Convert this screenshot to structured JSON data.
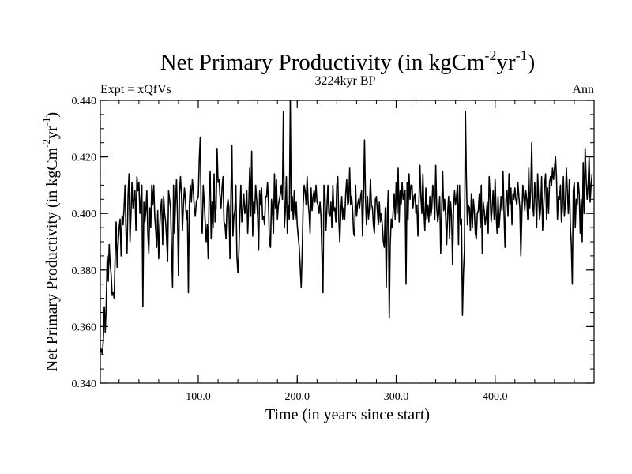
{
  "chart_data": {
    "type": "line",
    "title": "Net Primary Productivity (in kgCm",
    "title_sup1": "-2",
    "title_mid": "yr",
    "title_sup2": "-1",
    "title_end": ")",
    "left_label": "Expt = xQfVs",
    "center_label": "3224kyr BP",
    "right_label": "Ann",
    "xlabel": "Time (in years since start)",
    "ylabel": "Net Primary Productivity (in kgCm",
    "ylabel_sup1": "-2",
    "ylabel_mid": "yr",
    "ylabel_sup2": "-1",
    "ylabel_end": ")",
    "xlim": [
      1,
      500
    ],
    "ylim": [
      0.34,
      0.44
    ],
    "x_ticks": [
      100,
      200,
      300,
      400
    ],
    "x_tick_labels": [
      "100.0",
      "200.0",
      "300.0",
      "400.0"
    ],
    "y_ticks": [
      0.34,
      0.36,
      0.38,
      0.4,
      0.42,
      0.44
    ],
    "y_tick_labels": [
      "0.340",
      "0.360",
      "0.380",
      "0.400",
      "0.420",
      "0.440"
    ],
    "x_minor_step": 20,
    "y_minor_step": 0.005,
    "line_color": "#000000",
    "series": [
      {
        "x_start": 1,
        "x_step": 1,
        "values": [
          0.351,
          0.352,
          0.35,
          0.355,
          0.367,
          0.358,
          0.368,
          0.385,
          0.376,
          0.389,
          0.382,
          0.378,
          0.371,
          0.372,
          0.37,
          0.385,
          0.397,
          0.381,
          0.389,
          0.395,
          0.398,
          0.385,
          0.399,
          0.396,
          0.402,
          0.41,
          0.393,
          0.386,
          0.406,
          0.414,
          0.39,
          0.4,
          0.411,
          0.402,
          0.405,
          0.408,
          0.394,
          0.413,
          0.408,
          0.411,
          0.4,
          0.405,
          0.41,
          0.367,
          0.404,
          0.397,
          0.401,
          0.408,
          0.393,
          0.386,
          0.402,
          0.395,
          0.41,
          0.403,
          0.41,
          0.399,
          0.394,
          0.388,
          0.401,
          0.384,
          0.395,
          0.402,
          0.405,
          0.389,
          0.406,
          0.4,
          0.397,
          0.391,
          0.383,
          0.408,
          0.405,
          0.402,
          0.387,
          0.374,
          0.41,
          0.393,
          0.404,
          0.412,
          0.399,
          0.378,
          0.407,
          0.413,
          0.407,
          0.394,
          0.403,
          0.409,
          0.405,
          0.398,
          0.401,
          0.372,
          0.403,
          0.41,
          0.404,
          0.412,
          0.408,
          0.402,
          0.399,
          0.404,
          0.405,
          0.406,
          0.419,
          0.427,
          0.398,
          0.393,
          0.41,
          0.404,
          0.397,
          0.39,
          0.396,
          0.384,
          0.407,
          0.415,
          0.391,
          0.404,
          0.395,
          0.414,
          0.397,
          0.402,
          0.423,
          0.411,
          0.412,
          0.406,
          0.402,
          0.409,
          0.413,
          0.397,
          0.396,
          0.391,
          0.402,
          0.405,
          0.402,
          0.384,
          0.407,
          0.424,
          0.392,
          0.399,
          0.401,
          0.41,
          0.385,
          0.379,
          0.386,
          0.399,
          0.41,
          0.397,
          0.401,
          0.407,
          0.4,
          0.402,
          0.408,
          0.393,
          0.403,
          0.416,
          0.399,
          0.422,
          0.392,
          0.404,
          0.4,
          0.41,
          0.405,
          0.399,
          0.387,
          0.408,
          0.403,
          0.409,
          0.398,
          0.399,
          0.396,
          0.406,
          0.406,
          0.411,
          0.403,
          0.389,
          0.388,
          0.405,
          0.4,
          0.393,
          0.414,
          0.402,
          0.412,
          0.398,
          0.403,
          0.405,
          0.407,
          0.41,
          0.405,
          0.436,
          0.395,
          0.401,
          0.413,
          0.393,
          0.403,
          0.398,
          0.441,
          0.401,
          0.406,
          0.398,
          0.408,
          0.398,
          0.404,
          0.396,
          0.392,
          0.388,
          0.381,
          0.374,
          0.386,
          0.403,
          0.41,
          0.408,
          0.403,
          0.413,
          0.404,
          0.4,
          0.393,
          0.409,
          0.401,
          0.406,
          0.408,
          0.404,
          0.41,
          0.404,
          0.403,
          0.4,
          0.404,
          0.399,
          0.385,
          0.372,
          0.41,
          0.407,
          0.394,
          0.402,
          0.41,
          0.4,
          0.399,
          0.404,
          0.395,
          0.41,
          0.401,
          0.402,
          0.397,
          0.41,
          0.413,
          0.398,
          0.39,
          0.4,
          0.406,
          0.398,
          0.402,
          0.398,
          0.407,
          0.412,
          0.403,
          0.404,
          0.416,
          0.403,
          0.406,
          0.401,
          0.393,
          0.392,
          0.41,
          0.399,
          0.403,
          0.405,
          0.402,
          0.406,
          0.408,
          0.392,
          0.406,
          0.426,
          0.405,
          0.396,
          0.406,
          0.398,
          0.402,
          0.412,
          0.403,
          0.402,
          0.396,
          0.393,
          0.405,
          0.406,
          0.401,
          0.396,
          0.404,
          0.397,
          0.4,
          0.396,
          0.39,
          0.388,
          0.402,
          0.374,
          0.399,
          0.408,
          0.363,
          0.389,
          0.398,
          0.395,
          0.401,
          0.407,
          0.398,
          0.411,
          0.4,
          0.416,
          0.397,
          0.408,
          0.403,
          0.411,
          0.405,
          0.407,
          0.408,
          0.375,
          0.411,
          0.398,
          0.414,
          0.405,
          0.41,
          0.41,
          0.402,
          0.406,
          0.407,
          0.4,
          0.403,
          0.392,
          0.404,
          0.417,
          0.406,
          0.4,
          0.414,
          0.401,
          0.394,
          0.409,
          0.398,
          0.403,
          0.397,
          0.406,
          0.399,
          0.402,
          0.41,
          0.406,
          0.398,
          0.417,
          0.402,
          0.397,
          0.4,
          0.406,
          0.386,
          0.401,
          0.415,
          0.401,
          0.405,
          0.399,
          0.389,
          0.4,
          0.406,
          0.391,
          0.404,
          0.399,
          0.382,
          0.402,
          0.408,
          0.403,
          0.406,
          0.41,
          0.389,
          0.41,
          0.396,
          0.398,
          0.364,
          0.379,
          0.387,
          0.436,
          0.412,
          0.396,
          0.403,
          0.402,
          0.394,
          0.407,
          0.395,
          0.405,
          0.401,
          0.393,
          0.391,
          0.4,
          0.401,
          0.407,
          0.395,
          0.41,
          0.386,
          0.404,
          0.401,
          0.396,
          0.399,
          0.404,
          0.393,
          0.413,
          0.406,
          0.397,
          0.402,
          0.408,
          0.398,
          0.412,
          0.4,
          0.393,
          0.406,
          0.395,
          0.4,
          0.406,
          0.401,
          0.415,
          0.4,
          0.388,
          0.405,
          0.408,
          0.399,
          0.414,
          0.403,
          0.409,
          0.396,
          0.407,
          0.405,
          0.409,
          0.405,
          0.403,
          0.411,
          0.406,
          0.402,
          0.385,
          0.399,
          0.41,
          0.406,
          0.401,
          0.408,
          0.405,
          0.398,
          0.416,
          0.402,
          0.408,
          0.425,
          0.403,
          0.399,
          0.411,
          0.405,
          0.395,
          0.414,
          0.405,
          0.398,
          0.402,
          0.413,
          0.394,
          0.402,
          0.41,
          0.414,
          0.398,
          0.409,
          0.4,
          0.411,
          0.413,
          0.41,
          0.416,
          0.412,
          0.416,
          0.42,
          0.413,
          0.398,
          0.406,
          0.405,
          0.41,
          0.397,
          0.402,
          0.413,
          0.399,
          0.404,
          0.416,
          0.408,
          0.4,
          0.412,
          0.396,
          0.389,
          0.375,
          0.408,
          0.411,
          0.395,
          0.405,
          0.403,
          0.411,
          0.407,
          0.393,
          0.405,
          0.39,
          0.418,
          0.4,
          0.423,
          0.412,
          0.405,
          0.41,
          0.42,
          0.404,
          0.41,
          0.414
        ]
      }
    ]
  }
}
